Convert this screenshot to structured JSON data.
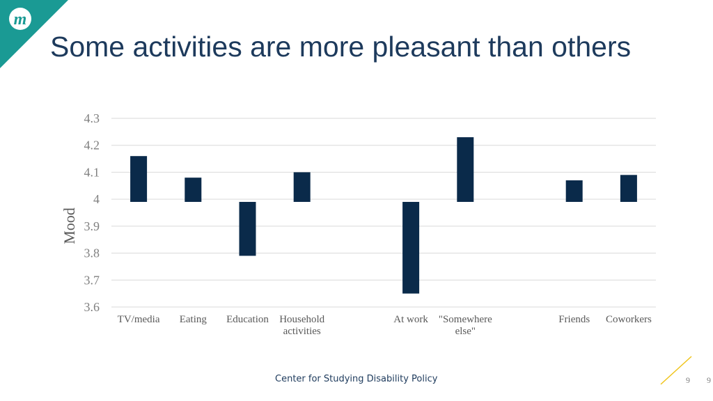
{
  "slide": {
    "title": "Some activities are more pleasant than others",
    "footer": "Center for Studying Disability Policy",
    "page_number": "9",
    "page_number_repeat": "9",
    "logo_letter": "m",
    "accent_color": "#1a9a94",
    "title_color": "#1d3a5c",
    "deco_line_color": "#f0c419"
  },
  "chart_data": {
    "type": "bar",
    "title": "",
    "xlabel": "",
    "ylabel": "Mood",
    "baseline": 3.99,
    "ylim": [
      3.6,
      4.3
    ],
    "yticks": [
      "3.6",
      "3.7",
      "3.8",
      "3.9",
      "4",
      "4.1",
      "4.2",
      "4.3"
    ],
    "grid": true,
    "legend": "none",
    "bar_color": "#0a2a4a",
    "categories": [
      [
        "TV/media"
      ],
      [
        "Eating"
      ],
      [
        "Education"
      ],
      [
        "Household",
        "activities"
      ],
      [
        ""
      ],
      [
        "At work"
      ],
      [
        "\"Somewhere",
        "else\""
      ],
      [
        ""
      ],
      [
        "Friends"
      ],
      [
        "Coworkers"
      ]
    ],
    "values": [
      4.16,
      4.08,
      3.79,
      4.1,
      null,
      3.65,
      4.23,
      null,
      4.07,
      4.09
    ]
  }
}
